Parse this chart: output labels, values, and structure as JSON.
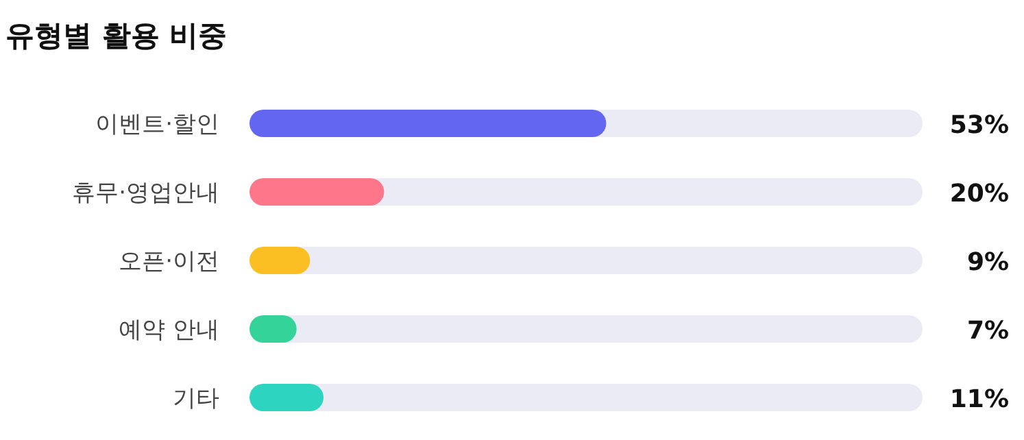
{
  "chart_data": {
    "type": "bar",
    "orientation": "horizontal",
    "title": "유형별 활용 비중",
    "categories": [
      "이벤트·할인",
      "휴무·영업안내",
      "오픈·이전",
      "예약 안내",
      "기타"
    ],
    "values": [
      53,
      20,
      9,
      7,
      11
    ],
    "colors": [
      "#6366f0",
      "#fe7689",
      "#fbbf24",
      "#34d399",
      "#2dd4bf"
    ],
    "value_labels": [
      "53%",
      "20%",
      "9%",
      "7%",
      "11%"
    ],
    "xlim": [
      0,
      100
    ],
    "tick_labels": "y"
  }
}
